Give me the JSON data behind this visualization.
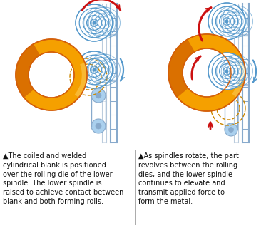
{
  "bg_color": "#ffffff",
  "orange_color": "#F5A000",
  "orange_dark": "#D4600A",
  "orange_shade": "#C85000",
  "blue_color": "#5599CC",
  "blue_light": "#AAD0EE",
  "blue_mid": "#4488BB",
  "steel_color": "#88AACC",
  "steel_light": "#BBCCDD",
  "red_arrow": "#CC1111",
  "dashed_color": "#CC8800",
  "text_color": "#111111",
  "caption1": "▲The coiled and welded\ncylindrical blank is positioned\nover the rolling die of the lower\nspindle. The lower spindle is\nraised to achieve contact between\nblank and both forming rolls.",
  "caption2": "▲As spindles rotate, the part\nrevolves between the rolling\ndies, and the lower spindle\ncontinues to elevate and\ntransmit applied force to\nform the metal.",
  "font_size": 7.0
}
